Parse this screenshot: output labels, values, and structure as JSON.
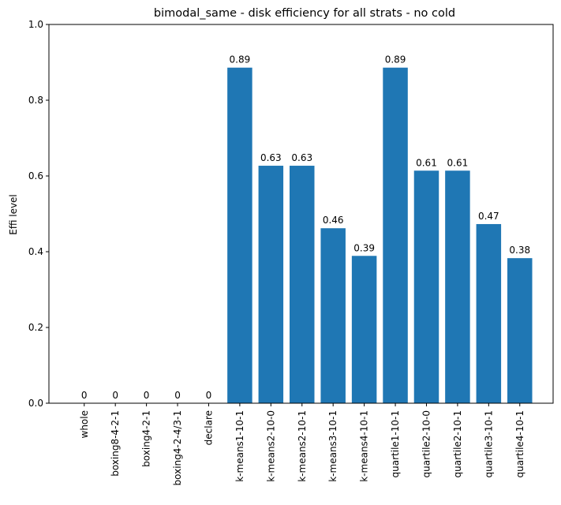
{
  "chart_data": {
    "type": "bar",
    "title": "bimodal_same - disk efficiency for all strats - no cold",
    "xlabel": "",
    "ylabel": "Effi level",
    "ylim": [
      0,
      1
    ],
    "yticks": [
      0.0,
      0.2,
      0.4,
      0.6,
      0.8,
      1.0
    ],
    "ytick_labels": [
      "0.0",
      "0.2",
      "0.4",
      "0.6",
      "0.8",
      "1.0"
    ],
    "categories": [
      "whole",
      "boxing8-4-2-1",
      "boxing4-2-1",
      "boxing4-2-4/3-1",
      "declare",
      "k-means1-10-1",
      "k-means2-10-0",
      "k-means2-10-1",
      "k-means3-10-1",
      "k-means4-10-1",
      "quartile1-10-1",
      "quartile2-10-0",
      "quartile2-10-1",
      "quartile3-10-1",
      "quartile4-10-1"
    ],
    "values": [
      0,
      0,
      0,
      0,
      0,
      0.886,
      0.627,
      0.627,
      0.462,
      0.389,
      0.886,
      0.614,
      0.614,
      0.473,
      0.383
    ],
    "data_labels": [
      "0",
      "0",
      "0",
      "0",
      "0",
      "0.89",
      "0.63",
      "0.63",
      "0.46",
      "0.39",
      "0.89",
      "0.61",
      "0.61",
      "0.47",
      "0.38"
    ],
    "bar_color": "#1f77b4",
    "grid": false,
    "legend": "none"
  }
}
